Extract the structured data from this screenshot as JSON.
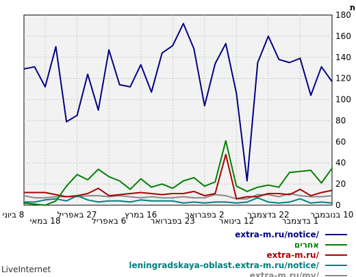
{
  "chart_data": {
    "type": "line",
    "ylabel": "כמות",
    "ylim": [
      0,
      180
    ],
    "yticks": [
      0,
      20,
      40,
      60,
      80,
      100,
      120,
      140,
      160,
      180
    ],
    "grid": true,
    "legend_position": "bottom-right",
    "x_tick_labels_row1": [
      "10 בנובמבר",
      "22 בדצמבר",
      "2 בפברואר",
      "16 במרץ",
      "27 באפריל",
      "8 ביוני"
    ],
    "x_tick_labels_row2": [
      "1 בדצמבר",
      "12 בינואר",
      "23 בפברואר",
      "6 באפריל",
      "18 במאי"
    ],
    "series": [
      {
        "name": "extra-m.ru/notice/",
        "color": "#000080",
        "values": [
          117,
          131,
          104,
          139,
          135,
          138,
          160,
          135,
          23,
          106,
          153,
          134,
          94,
          148,
          172,
          151,
          144,
          107,
          133,
          112,
          114,
          147,
          90,
          124,
          85,
          79,
          150,
          112,
          131,
          129
        ]
      },
      {
        "name": "אחרים",
        "color": "#008000",
        "values": [
          35,
          21,
          33,
          32,
          31,
          17,
          19,
          17,
          13,
          18,
          61,
          22,
          18,
          26,
          23,
          16,
          20,
          17,
          25,
          15,
          23,
          27,
          34,
          24,
          29,
          18,
          4,
          0,
          1,
          2
        ]
      },
      {
        "name": "extra-m.ru/",
        "color": "#aa0000",
        "values": [
          14,
          12,
          9,
          15,
          10,
          11,
          11,
          8,
          8,
          6,
          48,
          11,
          9,
          13,
          11,
          11,
          10,
          11,
          12,
          11,
          10,
          9,
          16,
          11,
          9,
          8,
          10,
          12,
          12,
          12
        ]
      },
      {
        "name": "leningradskaya-oblast.extra-m.ru/notice/",
        "color": "#008080",
        "values": [
          2,
          3,
          2,
          6,
          3,
          2,
          3,
          7,
          3,
          2,
          3,
          3,
          2,
          3,
          2,
          4,
          4,
          4,
          5,
          3,
          4,
          4,
          3,
          5,
          9,
          4,
          6,
          5,
          3,
          3
        ]
      },
      {
        "name": "extra-m.ru/my/",
        "color": "#888888",
        "values": [
          9,
          8,
          8,
          9,
          11,
          8,
          10,
          10,
          6,
          6,
          9,
          10,
          7,
          7,
          8,
          7,
          7,
          8,
          7,
          8,
          9,
          8,
          9,
          9,
          8,
          8,
          8,
          7,
          7,
          9
        ]
      }
    ]
  },
  "credit": "LiveInternet"
}
